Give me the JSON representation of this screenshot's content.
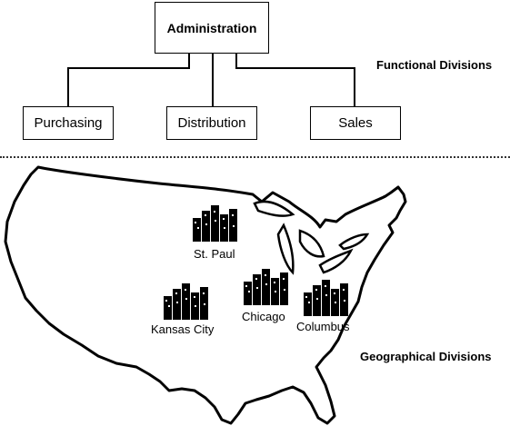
{
  "org_chart": {
    "top": "Administration",
    "children": [
      "Purchasing",
      "Distribution",
      "Sales"
    ]
  },
  "labels": {
    "functional": "Functional Divisions",
    "geographical": "Geographical Divisions"
  },
  "cities": [
    "St. Paul",
    "Kansas City",
    "Chicago",
    "Columbus"
  ],
  "colors": {
    "ink": "#000000",
    "background": "#ffffff"
  },
  "icons": [
    "city-skyline-icon",
    "us-map-outline"
  ]
}
